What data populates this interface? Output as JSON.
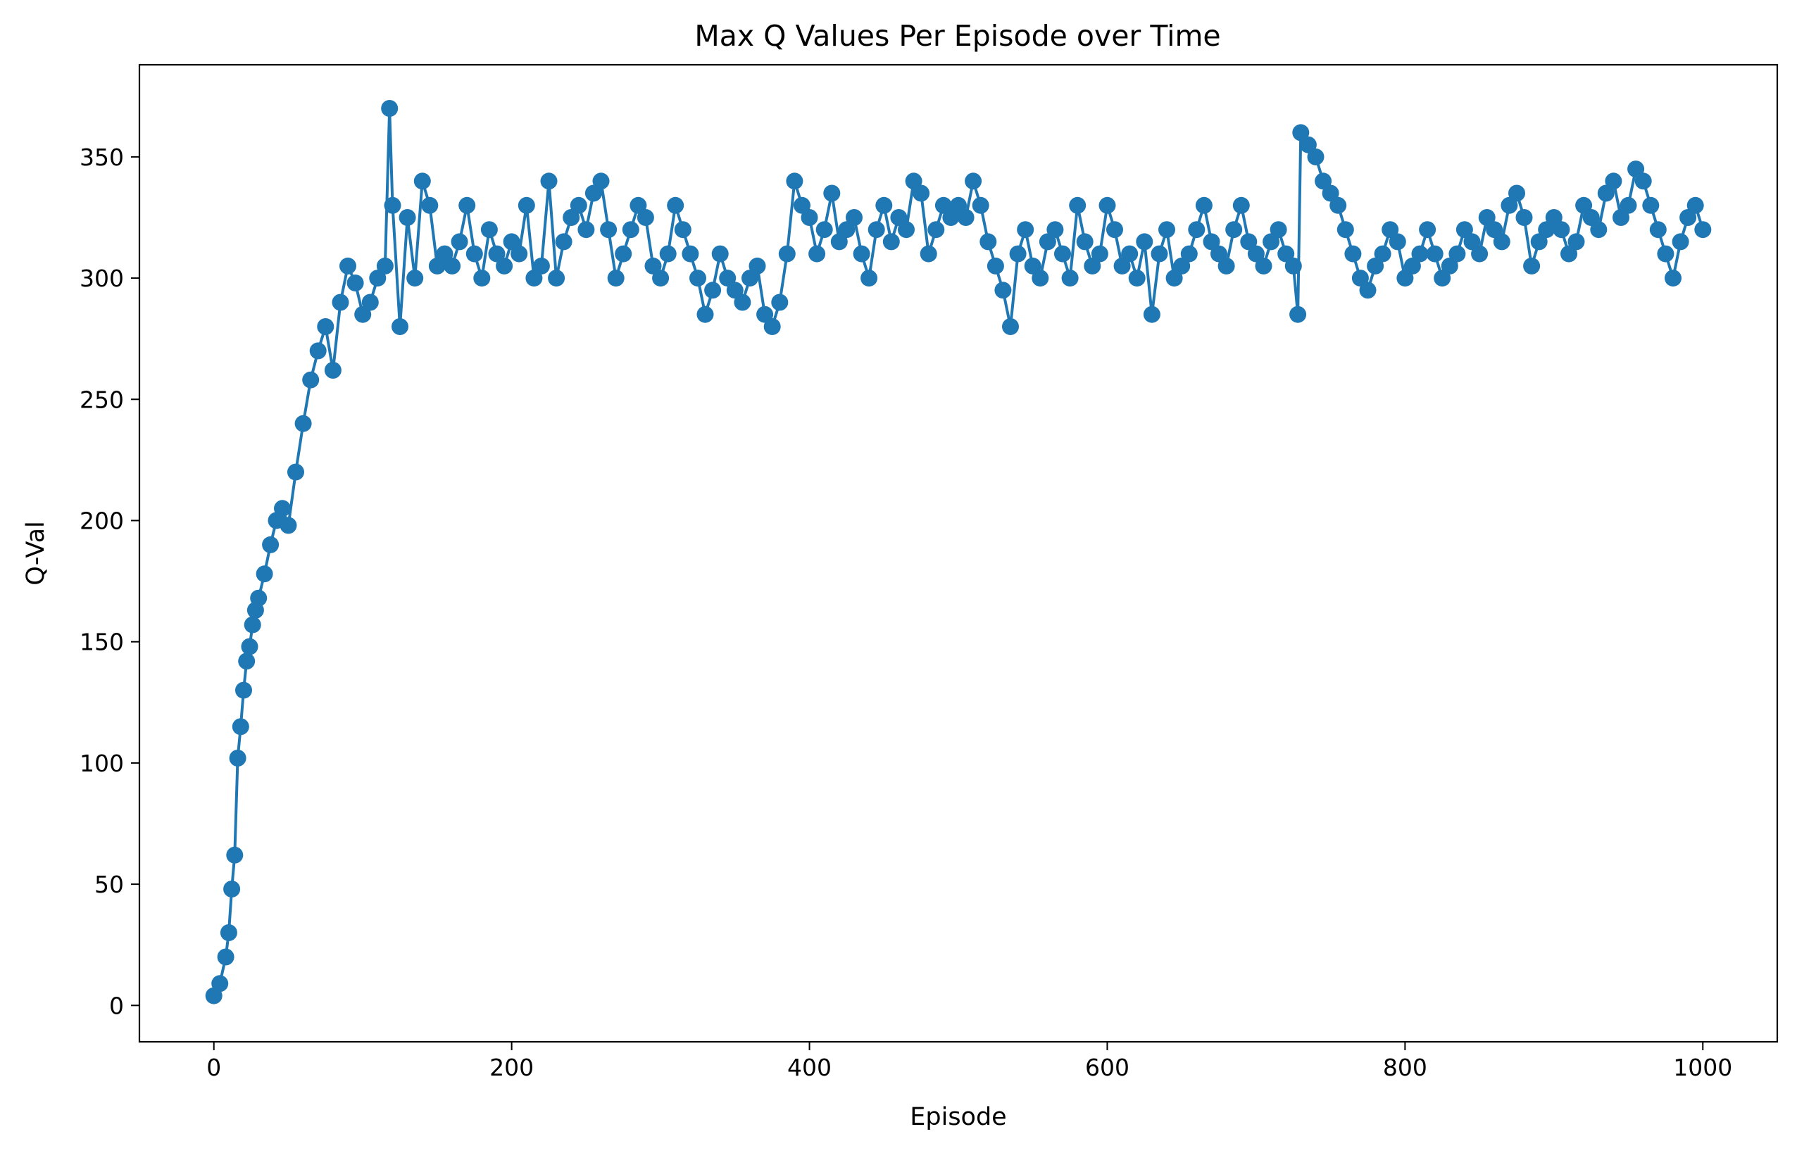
{
  "chart_data": {
    "type": "line",
    "title": "Max Q Values Per Episode over Time",
    "xlabel": "Episode",
    "ylabel": "Q-Val",
    "xlim": [
      -50,
      1050
    ],
    "ylim": [
      -15,
      388
    ],
    "xticks": [
      0,
      200,
      400,
      600,
      800,
      1000
    ],
    "yticks": [
      0,
      50,
      100,
      150,
      200,
      250,
      300,
      350
    ],
    "grid": false,
    "legend": "none",
    "markers": true,
    "series": [
      {
        "color": "#1f77b4",
        "x": [
          0,
          4,
          8,
          10,
          12,
          14,
          16,
          18,
          20,
          22,
          24,
          26,
          28,
          30,
          34,
          38,
          42,
          46,
          50,
          55,
          60,
          65,
          70,
          75,
          80,
          85,
          90,
          95,
          100,
          105,
          110,
          115,
          118,
          120,
          125,
          130,
          135,
          140,
          145,
          150,
          155,
          160,
          165,
          170,
          175,
          180,
          185,
          190,
          195,
          200,
          205,
          210,
          215,
          220,
          225,
          230,
          235,
          240,
          245,
          250,
          255,
          260,
          265,
          270,
          275,
          280,
          285,
          290,
          295,
          300,
          305,
          310,
          315,
          320,
          325,
          330,
          335,
          340,
          345,
          350,
          355,
          360,
          365,
          370,
          375,
          380,
          385,
          390,
          395,
          400,
          405,
          410,
          415,
          420,
          425,
          430,
          435,
          440,
          445,
          450,
          455,
          460,
          465,
          470,
          475,
          480,
          485,
          490,
          495,
          500,
          505,
          510,
          515,
          520,
          525,
          530,
          535,
          540,
          545,
          550,
          555,
          560,
          565,
          570,
          575,
          580,
          585,
          590,
          595,
          600,
          605,
          610,
          615,
          620,
          625,
          630,
          635,
          640,
          645,
          650,
          655,
          660,
          665,
          670,
          675,
          680,
          685,
          690,
          695,
          700,
          705,
          710,
          715,
          720,
          725,
          728,
          730,
          735,
          740,
          745,
          750,
          755,
          760,
          765,
          770,
          775,
          780,
          785,
          790,
          795,
          800,
          805,
          810,
          815,
          820,
          825,
          830,
          835,
          840,
          845,
          850,
          855,
          860,
          865,
          870,
          875,
          880,
          885,
          890,
          895,
          900,
          905,
          910,
          915,
          920,
          925,
          930,
          935,
          940,
          945,
          950,
          955,
          960,
          965,
          970,
          975,
          980,
          985,
          990,
          995,
          1000
        ],
        "y": [
          4,
          9,
          20,
          30,
          48,
          62,
          102,
          115,
          130,
          142,
          148,
          157,
          163,
          168,
          178,
          190,
          200,
          205,
          198,
          220,
          240,
          258,
          270,
          280,
          262,
          290,
          305,
          298,
          285,
          290,
          300,
          305,
          370,
          330,
          280,
          325,
          300,
          340,
          330,
          305,
          310,
          305,
          315,
          330,
          310,
          300,
          320,
          310,
          305,
          315,
          310,
          330,
          300,
          305,
          340,
          300,
          315,
          325,
          330,
          320,
          335,
          340,
          320,
          300,
          310,
          320,
          330,
          325,
          305,
          300,
          310,
          330,
          320,
          310,
          300,
          285,
          295,
          310,
          300,
          295,
          290,
          300,
          305,
          285,
          280,
          290,
          310,
          340,
          330,
          325,
          310,
          320,
          335,
          315,
          320,
          325,
          310,
          300,
          320,
          330,
          315,
          325,
          320,
          340,
          335,
          310,
          320,
          330,
          325,
          330,
          325,
          340,
          330,
          315,
          305,
          295,
          280,
          310,
          320,
          305,
          300,
          315,
          320,
          310,
          300,
          330,
          315,
          305,
          310,
          330,
          320,
          305,
          310,
          300,
          315,
          285,
          310,
          320,
          300,
          305,
          310,
          320,
          330,
          315,
          310,
          305,
          320,
          330,
          315,
          310,
          305,
          315,
          320,
          310,
          305,
          285,
          360,
          355,
          350,
          340,
          335,
          330,
          320,
          310,
          300,
          295,
          305,
          310,
          320,
          315,
          300,
          305,
          310,
          320,
          310,
          300,
          305,
          310,
          320,
          315,
          310,
          325,
          320,
          315,
          330,
          335,
          325,
          305,
          315,
          320,
          325,
          320,
          310,
          315,
          330,
          325,
          320,
          335,
          340,
          325,
          330,
          345,
          340,
          330,
          320,
          310,
          300,
          315,
          325,
          330,
          320
        ]
      }
    ]
  }
}
